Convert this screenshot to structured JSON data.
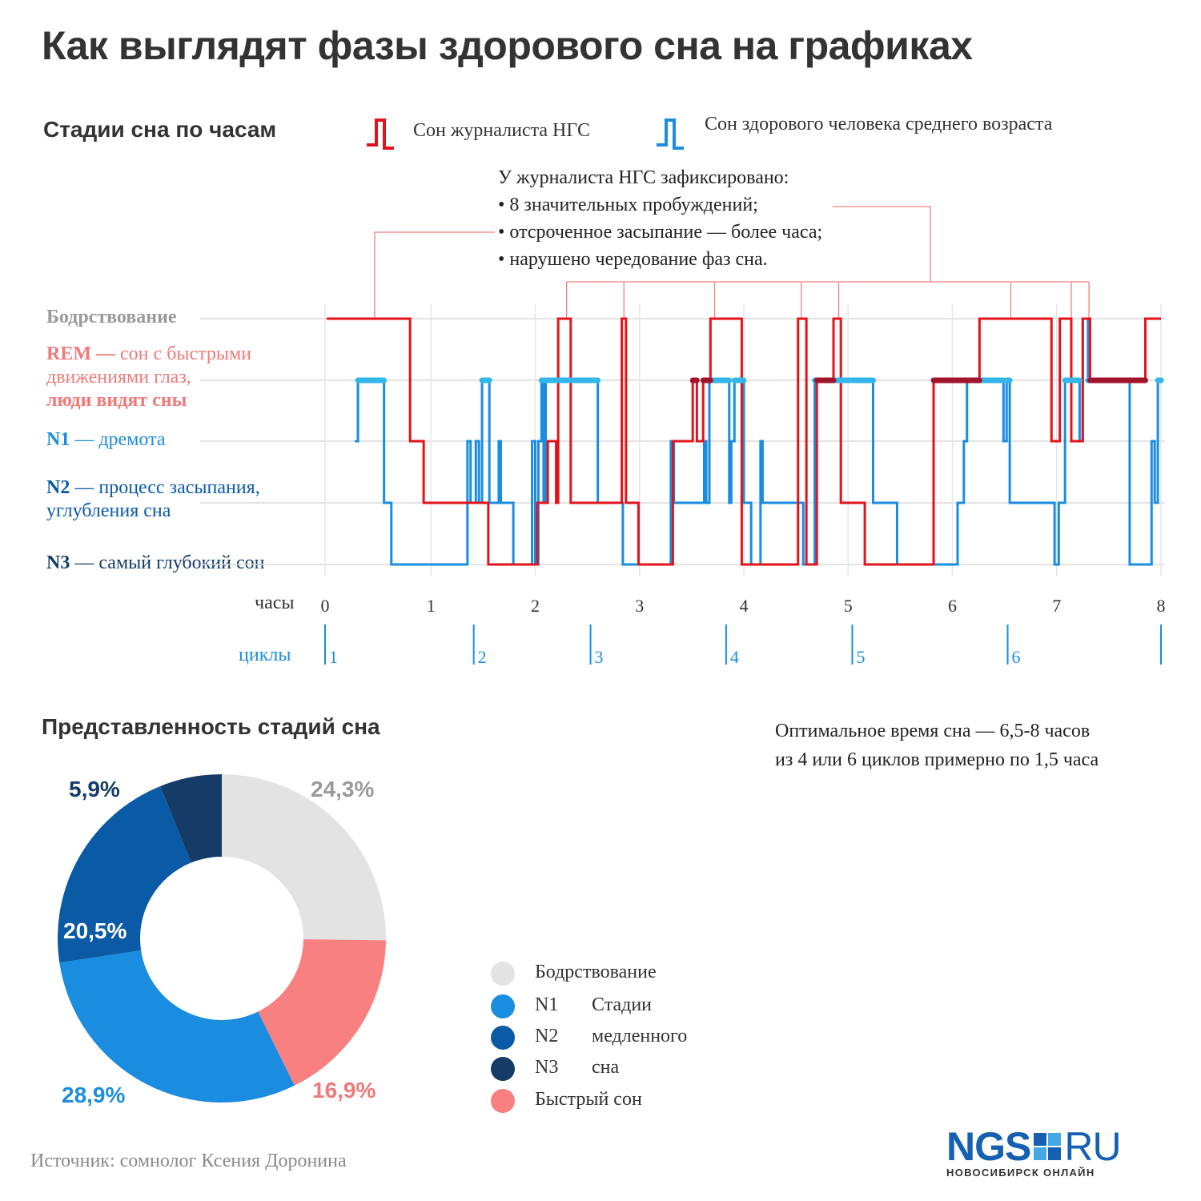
{
  "title": "Как выглядят фазы здорового сна на графиках",
  "hypnogram": {
    "heading": "Стадии сна по часам",
    "legend": {
      "journalist": "Сон журналиста НГС",
      "healthy": "Сон здорового человека среднего возраста"
    },
    "note": [
      "У журналиста НГС зафиксировано:",
      "• 8 значительных пробуждений;",
      "• отсроченное засыпание — более часа;",
      "• нарушено чередование фаз сна."
    ],
    "stage_labels": {
      "wake": "Бодрствование",
      "rem_bold": "REM —",
      "rem_text1": " сон с быстрыми",
      "rem_text2": "движениями глаз,",
      "rem_text3": "люди видят сны",
      "n1_bold": "N1",
      "n1_text": " — дремота",
      "n2_bold": "N2",
      "n2_text1": " — процесс засыпания,",
      "n2_text2": "углубления сна",
      "n3_bold": "N3",
      "n3_text": " — самый глубокий сон"
    },
    "x_axis_label": "часы",
    "cycles_label": "циклы"
  },
  "chart_data": [
    {
      "type": "line",
      "subtype": "step (hypnogram)",
      "x_unit": "hours",
      "xlim": [
        0,
        8
      ],
      "x_ticks": [
        "0",
        "1",
        "2",
        "3",
        "4",
        "5",
        "6",
        "7",
        "8"
      ],
      "y_categories": [
        "Бодрствование",
        "REM",
        "N1",
        "N2",
        "N3"
      ],
      "colors": {
        "journalist": "#e3131b",
        "journalist_rem": "#a0152c",
        "healthy": "#1a8de0",
        "healthy_rem": "#33b7ea",
        "annotation": "#f08080"
      },
      "cycles": [
        {
          "label": "1",
          "start": 0.0
        },
        {
          "label": "2",
          "start": 1.41
        },
        {
          "label": "3",
          "start": 2.53
        },
        {
          "label": "4",
          "start": 3.83
        },
        {
          "label": "5",
          "start": 5.04
        },
        {
          "label": "6",
          "start": 6.53
        },
        {
          "label": "",
          "start": 8.0
        }
      ],
      "series": [
        {
          "name": "Сон журналиста НГС",
          "steps": [
            [
              0,
              0
            ],
            [
              0.8,
              2
            ],
            [
              0.93,
              3
            ],
            [
              1.55,
              4
            ],
            [
              2.02,
              3
            ],
            [
              2.12,
              2
            ],
            [
              2.2,
              3
            ],
            [
              2.22,
              0
            ],
            [
              2.34,
              3
            ],
            [
              2.83,
              0
            ],
            [
              2.87,
              3
            ],
            [
              2.99,
              4
            ],
            [
              3.32,
              2
            ],
            [
              3.51,
              1
            ],
            [
              3.55,
              2
            ],
            [
              3.61,
              1
            ],
            [
              3.68,
              0
            ],
            [
              3.98,
              4
            ],
            [
              4.52,
              0
            ],
            [
              4.6,
              4
            ],
            [
              4.7,
              1
            ],
            [
              4.86,
              0
            ],
            [
              4.93,
              3
            ],
            [
              5.16,
              4
            ],
            [
              5.82,
              1
            ],
            [
              6.26,
              0
            ],
            [
              6.95,
              2
            ],
            [
              7.03,
              0
            ],
            [
              7.14,
              2
            ],
            [
              7.25,
              0
            ],
            [
              7.32,
              1
            ],
            [
              7.85,
              0
            ],
            [
              8.0,
              0
            ]
          ]
        },
        {
          "name": "Сон здорового человека среднего возраста",
          "steps": [
            [
              0.27,
              2
            ],
            [
              0.3,
              1
            ],
            [
              0.55,
              3
            ],
            [
              0.62,
              4
            ],
            [
              1.35,
              2
            ],
            [
              1.38,
              3
            ],
            [
              1.43,
              2
            ],
            [
              1.46,
              3
            ],
            [
              1.49,
              1
            ],
            [
              1.56,
              3
            ],
            [
              1.65,
              2
            ],
            [
              1.67,
              3
            ],
            [
              1.79,
              4
            ],
            [
              1.97,
              2
            ],
            [
              2.0,
              4
            ],
            [
              2.03,
              2
            ],
            [
              2.06,
              1
            ],
            [
              2.08,
              3
            ],
            [
              2.1,
              1
            ],
            [
              2.6,
              3
            ],
            [
              2.84,
              4
            ],
            [
              3.3,
              2
            ],
            [
              3.33,
              3
            ],
            [
              3.62,
              2
            ],
            [
              3.64,
              3
            ],
            [
              3.67,
              1
            ],
            [
              3.86,
              3
            ],
            [
              3.88,
              2
            ],
            [
              3.91,
              1
            ],
            [
              4.0,
              3
            ],
            [
              4.07,
              4
            ],
            [
              4.16,
              2
            ],
            [
              4.18,
              3
            ],
            [
              4.57,
              4
            ],
            [
              4.68,
              1
            ],
            [
              5.24,
              3
            ],
            [
              5.47,
              4
            ],
            [
              6.05,
              3
            ],
            [
              6.11,
              2
            ],
            [
              6.14,
              1
            ],
            [
              6.49,
              2
            ],
            [
              6.52,
              1
            ],
            [
              6.55,
              3
            ],
            [
              6.98,
              4
            ],
            [
              7.02,
              3
            ],
            [
              7.08,
              1
            ],
            [
              7.22,
              2
            ],
            [
              7.25,
              0
            ],
            [
              7.3,
              1
            ],
            [
              7.7,
              4
            ],
            [
              7.91,
              2
            ],
            [
              7.94,
              3
            ],
            [
              7.97,
              1
            ],
            [
              8.0,
              1
            ]
          ]
        }
      ],
      "callout_points": [
        0.46,
        2.3,
        2.85,
        3.72,
        4.55,
        4.91,
        6.56,
        7.14,
        7.31
      ]
    },
    {
      "type": "pie",
      "subtype": "donut",
      "title": "Представленность стадий сна",
      "slices": [
        {
          "label": "Бодрствование",
          "value": 24.3,
          "text": "24,3%",
          "color": "#e3e3e3",
          "text_color": "#9a9a9a"
        },
        {
          "label": "Быстрый сон",
          "value": 16.9,
          "text": "16,9%",
          "color": "#f88080",
          "text_color": "#f07a7a"
        },
        {
          "label": "N1",
          "value": 28.9,
          "text": "28,9%",
          "color": "#1a8de0",
          "text_color": "#1a8de0"
        },
        {
          "label": "N2",
          "value": 20.5,
          "text": "20,5%",
          "color": "#0a5aa6",
          "text_color": "#ffffff"
        },
        {
          "label": "N3",
          "value": 5.9,
          "text": "5,9%",
          "color": "#143c66",
          "text_color": "#143c66"
        }
      ]
    }
  ],
  "donut_legend": {
    "wake": "Бодрствование",
    "n1": "N1",
    "n2": "N2",
    "n3": "N3",
    "slow_1": "Стадии",
    "slow_2": "медленного",
    "slow_3": "сна",
    "rem": "Быстрый сон"
  },
  "optimal": [
    "Оптимальное время сна — 6,5-8 часов",
    "из 4 или 6 циклов примерно по 1,5 часа"
  ],
  "source": "Источник: сомнолог Ксения Доронина",
  "logo": {
    "main_left": "NGS",
    "main_right": "RU",
    "sub": "НОВОСИБИРСК ОНЛАЙН",
    "blue": "#1560b3",
    "accent": "#45a8e5"
  }
}
